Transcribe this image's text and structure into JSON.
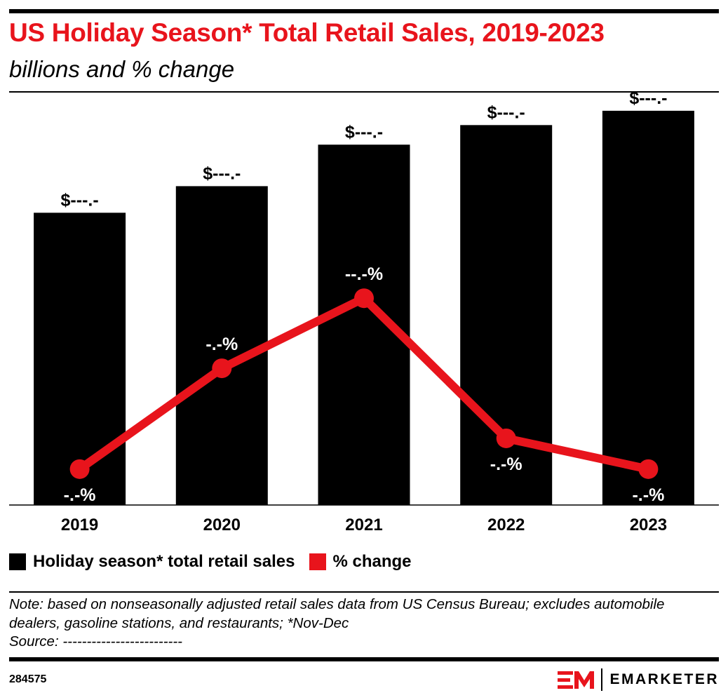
{
  "header": {
    "title": "US Holiday Season* Total Retail Sales, 2019-2023",
    "subtitle": "billions and % change"
  },
  "colors": {
    "bars": "#000000",
    "line": "#e8141c",
    "title": "#e8141c"
  },
  "chart_data": {
    "type": "bar+line",
    "categories": [
      "2019",
      "2020",
      "2021",
      "2022",
      "2023"
    ],
    "series": [
      {
        "name": "Holiday season* total retail sales",
        "type": "bar",
        "color": "#000000",
        "values": [
          1000,
          1091,
          1233,
          1300,
          1349
        ],
        "labels": [
          "$---.-",
          "$---.-",
          "$---.-",
          "$---.-",
          "$---.-"
        ]
      },
      {
        "name": "% change",
        "type": "line",
        "color": "#e8141c",
        "values": [
          4.0,
          9.9,
          14.0,
          5.8,
          4.0
        ],
        "labels": [
          "-.-%",
          "-.-%",
          "--.-%",
          "-.-%",
          "-.-%"
        ]
      }
    ],
    "bar_ylim": [
      0,
      1380
    ],
    "line_ylim": [
      1.9,
      25.5
    ],
    "grid": false,
    "legend": "bottom-left"
  },
  "legend": {
    "bars_label": "Holiday season* total retail sales",
    "line_label": "% change"
  },
  "notes": {
    "note": "Note: based on nonseasonally adjusted retail sales data from US Census Bureau; excludes automobile dealers, gasoline stations, and restaurants; *Nov-Dec",
    "source": "Source: -------------------------"
  },
  "footer": {
    "chart_id": "284575",
    "brand": "EMARKETER"
  }
}
